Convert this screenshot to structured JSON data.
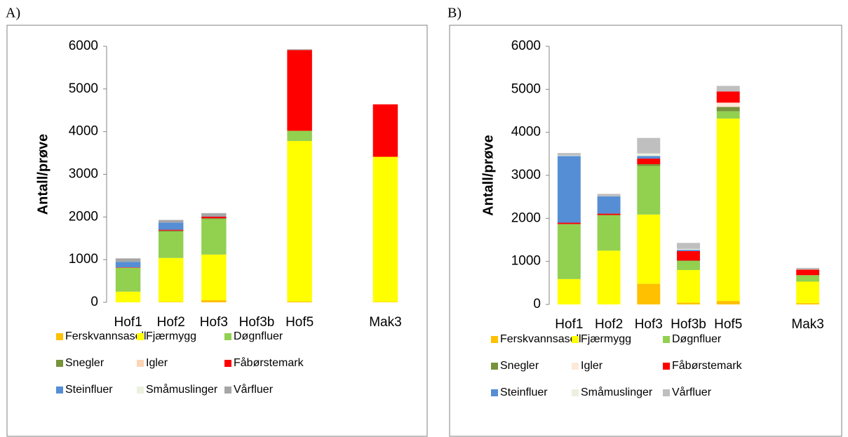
{
  "chart_data": [
    {
      "type": "stacked-bar",
      "panel_label": "A)",
      "ylabel": "Antall/prøve",
      "categories": [
        "Hof1",
        "Hof2",
        "Hof3",
        "Hof3b",
        "Hof5",
        null,
        "Mak3"
      ],
      "ylim": [
        0,
        6000
      ],
      "yticks": [
        0,
        1000,
        2000,
        3000,
        4000,
        5000,
        6000
      ],
      "series": [
        {
          "name": "Ferskvannsasell",
          "color": "#FFC000",
          "values": [
            0,
            10,
            50,
            0,
            20,
            null,
            10
          ]
        },
        {
          "name": "Fjærmygg",
          "color": "#FFFF00",
          "values": [
            250,
            1030,
            1070,
            0,
            3760,
            null,
            3400
          ]
        },
        {
          "name": "Døgnfluer",
          "color": "#92D050",
          "values": [
            560,
            620,
            830,
            0,
            240,
            null,
            0
          ]
        },
        {
          "name": "Snegler",
          "color": "#77933C",
          "values": [
            0,
            20,
            20,
            0,
            0,
            null,
            0
          ]
        },
        {
          "name": "Igler",
          "color": "#FCD5B5",
          "values": [
            0,
            0,
            0,
            0,
            0,
            null,
            0
          ]
        },
        {
          "name": "Fåbørstemark",
          "color": "#FF0000",
          "values": [
            10,
            20,
            40,
            0,
            1890,
            null,
            1230
          ]
        },
        {
          "name": "Steinfluer",
          "color": "#558ED5",
          "values": [
            130,
            170,
            10,
            0,
            0,
            null,
            0
          ]
        },
        {
          "name": "Småmuslinger",
          "color": "#EBF1DE",
          "values": [
            0,
            0,
            0,
            0,
            0,
            null,
            0
          ]
        },
        {
          "name": "Vårfluer",
          "color": "#A6A6A6",
          "values": [
            80,
            60,
            70,
            0,
            20,
            null,
            0
          ]
        }
      ]
    },
    {
      "type": "stacked-bar",
      "panel_label": "B)",
      "ylabel": "Antall/prøve",
      "categories": [
        "Hof1",
        "Hof2",
        "Hof3",
        "Hof3b",
        "Hof5",
        null,
        "Mak3"
      ],
      "ylim": [
        0,
        6000
      ],
      "yticks": [
        0,
        1000,
        2000,
        3000,
        4000,
        5000,
        6000
      ],
      "series": [
        {
          "name": "Ferskvannsasell",
          "color": "#FFC000",
          "values": [
            0,
            0,
            480,
            40,
            80,
            null,
            30
          ]
        },
        {
          "name": "Fjærmygg",
          "color": "#FFFF00",
          "values": [
            590,
            1250,
            1610,
            760,
            4240,
            null,
            500
          ]
        },
        {
          "name": "Døgnfluer",
          "color": "#92D050",
          "values": [
            1270,
            820,
            1130,
            210,
            170,
            null,
            150
          ]
        },
        {
          "name": "Snegler",
          "color": "#77933C",
          "values": [
            10,
            10,
            40,
            10,
            100,
            null,
            0
          ]
        },
        {
          "name": "Igler",
          "color": "#FDE9D9",
          "values": [
            0,
            0,
            0,
            0,
            100,
            null,
            0
          ]
        },
        {
          "name": "Fåbørstemark",
          "color": "#FF0000",
          "values": [
            30,
            30,
            130,
            220,
            260,
            null,
            130
          ]
        },
        {
          "name": "Steinfluer",
          "color": "#558ED5",
          "values": [
            1550,
            400,
            60,
            30,
            0,
            null,
            0
          ]
        },
        {
          "name": "Småmuslinger",
          "color": "#EBF1DE",
          "values": [
            10,
            0,
            60,
            20,
            0,
            null,
            0
          ]
        },
        {
          "name": "Vårfluer",
          "color": "#BFBFBF",
          "values": [
            60,
            60,
            360,
            140,
            130,
            null,
            40
          ]
        }
      ]
    }
  ]
}
